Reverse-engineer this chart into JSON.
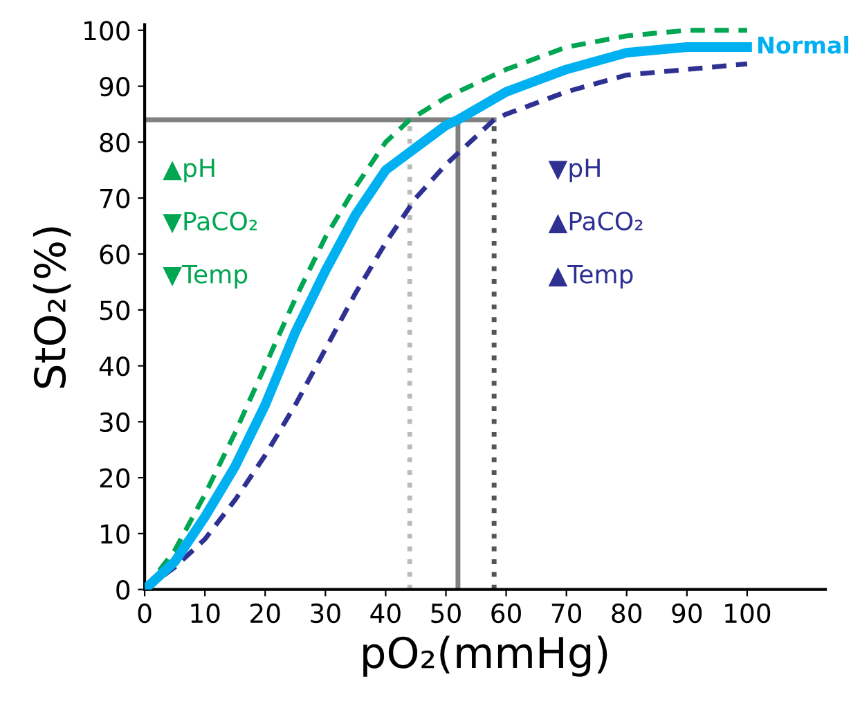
{
  "chart_data": {
    "type": "line",
    "xlabel": "pO₂(mmHg)",
    "ylabel": "StO₂(%)",
    "xlim": [
      0,
      113
    ],
    "ylim": [
      0,
      101
    ],
    "xticks": [
      0,
      10,
      20,
      30,
      40,
      50,
      60,
      70,
      80,
      90,
      100
    ],
    "yticks": [
      0,
      10,
      20,
      30,
      40,
      50,
      60,
      70,
      80,
      90,
      100
    ],
    "grid": false,
    "legend": false,
    "marker": "none",
    "series": [
      {
        "name": "Normal",
        "color": "#00b0f0",
        "line_style": "solid",
        "x": [
          0,
          5,
          10,
          15,
          20,
          25,
          30,
          35,
          40,
          45,
          50,
          52,
          60,
          70,
          80,
          90,
          100
        ],
        "values": [
          0,
          5,
          13,
          22,
          33,
          46,
          57,
          67,
          75,
          79,
          83,
          84,
          89,
          93,
          96,
          97,
          97
        ]
      },
      {
        "color": "#00a651",
        "line_style": "dashed",
        "x": [
          0,
          5,
          10,
          15,
          20,
          25,
          30,
          35,
          40,
          44,
          50,
          60,
          70,
          80,
          90,
          100
        ],
        "values": [
          0,
          7,
          17,
          28,
          40,
          52,
          63,
          72,
          80,
          84,
          88,
          93,
          97,
          99,
          100,
          100
        ]
      },
      {
        "color": "#2e3192",
        "line_style": "dashed",
        "x": [
          0,
          5,
          10,
          15,
          20,
          25,
          30,
          35,
          40,
          45,
          50,
          55,
          58,
          60,
          70,
          80,
          90,
          100
        ],
        "values": [
          0,
          4,
          9,
          16,
          24,
          33,
          43,
          53,
          62,
          70,
          76,
          81,
          84,
          85,
          89,
          92,
          93,
          94
        ]
      }
    ],
    "ref_lines": [
      {
        "axis": "y",
        "value": 84,
        "color": "#808080",
        "line_style": "solid"
      },
      {
        "axis": "x",
        "value": 44,
        "color": "#bbbbbb",
        "line_style": "dotted"
      },
      {
        "axis": "x",
        "value": 52,
        "color": "#808080",
        "line_style": "solid"
      },
      {
        "axis": "x",
        "value": 58,
        "color": "#555555",
        "line_style": "dotted"
      }
    ],
    "annotations": [
      "▲pH",
      "▼PaCO₂",
      "▼Temp",
      "▼pH",
      "▲PaCO₂",
      "▲Temp"
    ]
  }
}
